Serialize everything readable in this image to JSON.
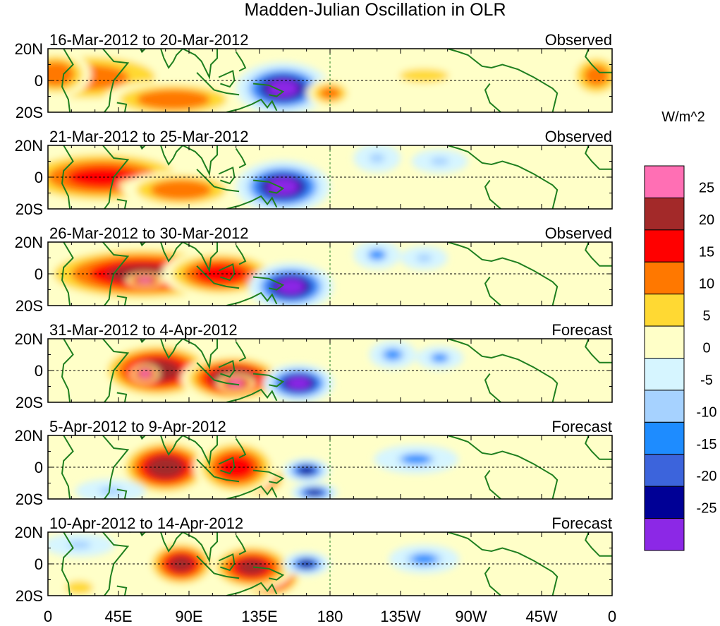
{
  "chart_data": {
    "type": "heatmap",
    "title": "Madden-Julian Oscillation in OLR",
    "x_ticks": [
      "0",
      "45E",
      "90E",
      "135E",
      "180",
      "135W",
      "90W",
      "45W",
      "0"
    ],
    "y_ticks": [
      "20N",
      "0",
      "20S"
    ],
    "colorbar": {
      "unit": "W/m^2",
      "labels": [
        "25",
        "20",
        "15",
        "10",
        "5",
        "0",
        "-5",
        "-10",
        "-15",
        "-20",
        "-25"
      ],
      "colors": [
        "#ff6fb4",
        "#a32929",
        "#ff0000",
        "#ff7800",
        "#ffd933",
        "#ffffc8",
        "#d6f5ff",
        "#a6d2ff",
        "#1e8cff",
        "#3c64dc",
        "#000096",
        "#8c28e6"
      ]
    },
    "panels": [
      {
        "period": "16-Mar-2012 to 20-Mar-2012",
        "status": "Observed",
        "anomalies": [
          {
            "lon": 25,
            "lat": 2,
            "value": 12,
            "rlon": 40,
            "rlat": 12
          },
          {
            "lon": 80,
            "lat": -12,
            "value": 14,
            "rlon": 30,
            "rlat": 8
          },
          {
            "lon": 5,
            "lat": 4,
            "value": 14,
            "rlon": 15,
            "rlat": 10
          },
          {
            "lon": 350,
            "lat": 3,
            "value": 12,
            "rlon": 12,
            "rlat": 10
          },
          {
            "lon": 150,
            "lat": -5,
            "value": -30,
            "rlon": 20,
            "rlat": 11
          },
          {
            "lon": 180,
            "lat": -8,
            "value": 12,
            "rlon": 10,
            "rlat": 6
          },
          {
            "lon": 240,
            "lat": 3,
            "value": 8,
            "rlon": 18,
            "rlat": 5
          }
        ]
      },
      {
        "period": "21-Mar-2012 to 25-Mar-2012",
        "status": "Observed",
        "anomalies": [
          {
            "lon": 35,
            "lat": 0,
            "value": 16,
            "rlon": 40,
            "rlat": 12
          },
          {
            "lon": 60,
            "lat": -5,
            "value": 26,
            "rlon": 10,
            "rlat": 3
          },
          {
            "lon": 85,
            "lat": -8,
            "value": 14,
            "rlon": 25,
            "rlat": 8
          },
          {
            "lon": 150,
            "lat": -6,
            "value": -30,
            "rlon": 20,
            "rlat": 11
          },
          {
            "lon": 210,
            "lat": 12,
            "value": -9,
            "rlon": 10,
            "rlat": 6
          },
          {
            "lon": 250,
            "lat": 10,
            "value": -8,
            "rlon": 12,
            "rlat": 5
          }
        ]
      },
      {
        "period": "26-Mar-2012 to 30-Mar-2012",
        "status": "Observed",
        "anomalies": [
          {
            "lon": 60,
            "lat": 0,
            "value": 20,
            "rlon": 45,
            "rlat": 12
          },
          {
            "lon": 62,
            "lat": -4,
            "value": 26,
            "rlon": 8,
            "rlat": 3
          },
          {
            "lon": 110,
            "lat": 0,
            "value": 18,
            "rlon": 25,
            "rlat": 10
          },
          {
            "lon": 155,
            "lat": -8,
            "value": -30,
            "rlon": 18,
            "rlat": 10
          },
          {
            "lon": 210,
            "lat": 12,
            "value": -12,
            "rlon": 10,
            "rlat": 6
          },
          {
            "lon": 240,
            "lat": 10,
            "value": -10,
            "rlon": 10,
            "rlat": 5
          }
        ]
      },
      {
        "period": "31-Mar-2012 to 4-Apr-2012",
        "status": "Forecast",
        "anomalies": [
          {
            "lon": 70,
            "lat": 0,
            "value": 22,
            "rlon": 25,
            "rlat": 12
          },
          {
            "lon": 62,
            "lat": -2,
            "value": 28,
            "rlon": 6,
            "rlat": 4
          },
          {
            "lon": 118,
            "lat": -5,
            "value": 24,
            "rlon": 22,
            "rlat": 10
          },
          {
            "lon": 120,
            "lat": -8,
            "value": 28,
            "rlon": 8,
            "rlat": 4
          },
          {
            "lon": 160,
            "lat": -8,
            "value": -30,
            "rlon": 15,
            "rlat": 8
          },
          {
            "lon": 220,
            "lat": 10,
            "value": -14,
            "rlon": 10,
            "rlat": 6
          },
          {
            "lon": 250,
            "lat": 8,
            "value": -12,
            "rlon": 10,
            "rlat": 5
          }
        ]
      },
      {
        "period": "5-Apr-2012 to 9-Apr-2012",
        "status": "Forecast",
        "anomalies": [
          {
            "lon": 75,
            "lat": 0,
            "value": 22,
            "rlon": 20,
            "rlat": 12
          },
          {
            "lon": 130,
            "lat": -7,
            "value": 28,
            "rlon": 15,
            "rlat": 8
          },
          {
            "lon": 120,
            "lat": 0,
            "value": 18,
            "rlon": 18,
            "rlat": 12
          },
          {
            "lon": 165,
            "lat": -2,
            "value": -24,
            "rlon": 10,
            "rlat": 5
          },
          {
            "lon": 170,
            "lat": -16,
            "value": -24,
            "rlon": 10,
            "rlat": 4
          },
          {
            "lon": 235,
            "lat": 5,
            "value": -12,
            "rlon": 18,
            "rlat": 6
          },
          {
            "lon": 40,
            "lat": -15,
            "value": -10,
            "rlon": 15,
            "rlat": 5
          }
        ]
      },
      {
        "period": "10-Apr-2012 to 14-Apr-2012",
        "status": "Forecast",
        "anomalies": [
          {
            "lon": 85,
            "lat": 0,
            "value": 20,
            "rlon": 15,
            "rlat": 10
          },
          {
            "lon": 140,
            "lat": -8,
            "value": 28,
            "rlon": 15,
            "rlat": 9
          },
          {
            "lon": 130,
            "lat": -2,
            "value": 20,
            "rlon": 18,
            "rlat": 10
          },
          {
            "lon": 165,
            "lat": 0,
            "value": -22,
            "rlon": 10,
            "rlat": 5
          },
          {
            "lon": 240,
            "lat": 3,
            "value": -14,
            "rlon": 15,
            "rlat": 6
          },
          {
            "lon": 20,
            "lat": 12,
            "value": -10,
            "rlon": 15,
            "rlat": 5
          },
          {
            "lon": 20,
            "lat": -15,
            "value": 8,
            "rlon": 10,
            "rlat": 5
          }
        ]
      }
    ]
  }
}
